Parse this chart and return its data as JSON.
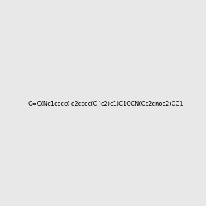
{
  "smiles": "O=C(Nc1cccc(-c2cccc(Cl)c2)c1)C1CCN(Cc2cnoc2)CC1",
  "image_size": 300,
  "background_color": "#e8e8e8",
  "title": ""
}
